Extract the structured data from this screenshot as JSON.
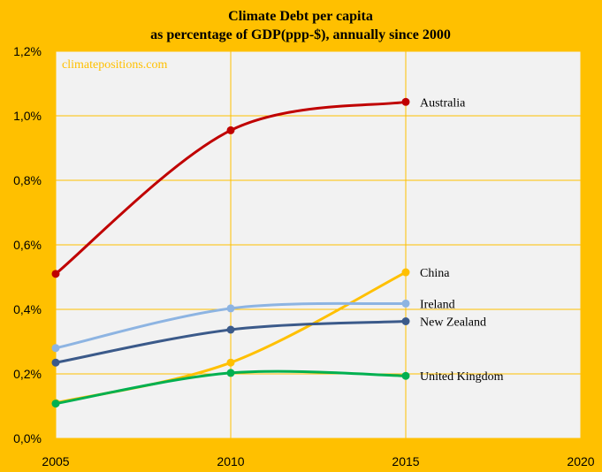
{
  "chart_data": {
    "type": "line",
    "title": "Climate Debt per capita",
    "subtitle": "as percentage of GDP(ppp-$), annually since 2000",
    "watermark": "climatepositions.com",
    "xlabel": "",
    "ylabel": "",
    "xlim": [
      2005,
      2020
    ],
    "ylim": [
      0,
      1.2
    ],
    "x_ticks": [
      "2005",
      "2010",
      "2015",
      "2020"
    ],
    "y_ticks": [
      "0,0%",
      "0,2%",
      "0,4%",
      "0,6%",
      "0,8%",
      "1,0%",
      "1,2%"
    ],
    "grid": true,
    "legend": "labels at line ends",
    "x": [
      2005,
      2010,
      2015
    ],
    "series": [
      {
        "name": "Australia",
        "values": [
          0.51,
          0.955,
          1.043
        ],
        "color": "#C00000"
      },
      {
        "name": "China",
        "values": [
          0.11,
          0.235,
          0.515
        ],
        "color": "#FFC000"
      },
      {
        "name": "Ireland",
        "values": [
          0.28,
          0.403,
          0.418
        ],
        "color": "#8DB4E2"
      },
      {
        "name": "New Zealand",
        "values": [
          0.235,
          0.337,
          0.363
        ],
        "color": "#3B5A8A"
      },
      {
        "name": "United Kingdom",
        "values": [
          0.108,
          0.203,
          0.194
        ],
        "color": "#00B050"
      }
    ],
    "colors": {
      "background": "#FFC000",
      "plot_area": "#F2F2F2",
      "grid": "#FFC000",
      "watermark": "#FFC000"
    }
  }
}
